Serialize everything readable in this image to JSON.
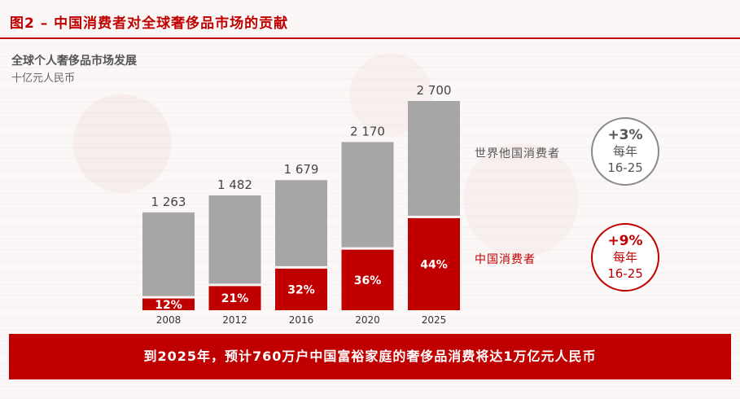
{
  "header": {
    "title": "图2 – 中国消费者对全球奢侈品市场的贡献"
  },
  "chart_data": {
    "type": "bar",
    "title": "全球个人奢侈品市场发展",
    "subtitle": "十亿元人民币",
    "categories": [
      "2008",
      "2012",
      "2016",
      "2020",
      "2025"
    ],
    "totals": [
      1263,
      1482,
      1679,
      2170,
      2700
    ],
    "total_labels": [
      "1 263",
      "1 482",
      "1 679",
      "2 170",
      "2 700"
    ],
    "series": [
      {
        "name": "中国消费者",
        "share_pct": [
          12,
          21,
          32,
          36,
          44
        ],
        "labels": [
          "12%",
          "21%",
          "32%",
          "36%",
          "44%"
        ],
        "color": "#c00000"
      },
      {
        "name": "世界他国消费者",
        "color": "#a6a6a6"
      }
    ],
    "ylim": [
      0,
      2700
    ],
    "grid": false
  },
  "growth": {
    "world": {
      "rate": "+3%",
      "per": "每年",
      "period": "16-25"
    },
    "china": {
      "rate": "+9%",
      "per": "每年",
      "period": "16-25"
    }
  },
  "banner": {
    "text": "到2025年，预计760万户中国富裕家庭的奢侈品消费将达1万亿元人民币"
  },
  "colors": {
    "accent": "#c00000",
    "world": "#a6a6a6",
    "background": "#fbf7f6"
  }
}
